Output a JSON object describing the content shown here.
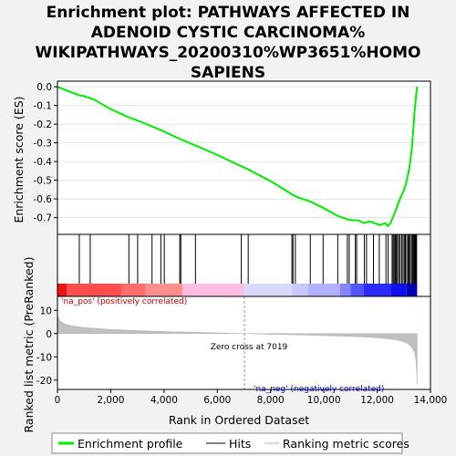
{
  "chart_data": {
    "type": "line",
    "title_lines": [
      "Enrichment plot: PATHWAYS AFFECTED IN",
      "ADENOID CYSTIC CARCINOMA%",
      "WIKIPATHWAYS_20200310%WP3651%HOMO",
      "SAPIENS"
    ],
    "es_panel": {
      "ylabel": "Enrichment score (ES)",
      "ylim": [
        -0.79,
        0.03
      ],
      "yticks": [
        0.0,
        -0.1,
        -0.2,
        -0.3,
        -0.4,
        -0.5,
        -0.6,
        -0.7
      ],
      "ytick_labels": [
        "0.0",
        "-0.1",
        "-0.2",
        "-0.3",
        "-0.4",
        "-0.5",
        "-0.6",
        "-0.7"
      ],
      "series": [
        {
          "name": "Enrichment profile",
          "color": "#00ee00",
          "x": [
            0,
            800,
            1000,
            1200,
            1400,
            2000,
            2700,
            3000,
            3600,
            4000,
            4600,
            5200,
            6000,
            6900,
            7200,
            8000,
            8800,
            9000,
            9500,
            10000,
            10500,
            10900,
            11100,
            11300,
            11500,
            11700,
            11900,
            12100,
            12300,
            12400,
            12500,
            12600,
            12700,
            12800,
            12900,
            13000,
            13100,
            13200,
            13250,
            13300,
            13350,
            13400,
            13450,
            13500
          ],
          "y": [
            0.0,
            -0.045,
            -0.05,
            -0.06,
            -0.07,
            -0.12,
            -0.165,
            -0.18,
            -0.215,
            -0.24,
            -0.28,
            -0.315,
            -0.365,
            -0.425,
            -0.445,
            -0.505,
            -0.575,
            -0.59,
            -0.615,
            -0.65,
            -0.69,
            -0.71,
            -0.715,
            -0.715,
            -0.73,
            -0.72,
            -0.73,
            -0.74,
            -0.73,
            -0.745,
            -0.73,
            -0.695,
            -0.66,
            -0.62,
            -0.585,
            -0.555,
            -0.51,
            -0.44,
            -0.39,
            -0.33,
            -0.24,
            -0.14,
            -0.06,
            0.0
          ]
        }
      ]
    },
    "hits": [
      820,
      1230,
      2680,
      3010,
      3550,
      3880,
      4010,
      4590,
      4630,
      5180,
      6900,
      7160,
      8800,
      8840,
      8930,
      9490,
      9970,
      10520,
      10880,
      10950,
      11180,
      11230,
      11520,
      11600,
      11860,
      12080,
      12330,
      12410,
      12560,
      12600,
      12640,
      12680,
      12720,
      12760,
      12810,
      12860,
      12920,
      12970,
      13020,
      13060,
      13110,
      13160,
      13200,
      13240,
      13290,
      13330,
      13360,
      13390,
      13420,
      13450,
      13480
    ],
    "heatmap": {
      "pos_label": "'na_pos' (positively correlated)",
      "neg_label": "'na_neg' (negatively correlated)",
      "bands": [
        {
          "start": 0,
          "end": 350,
          "color": "#ee1111"
        },
        {
          "start": 350,
          "end": 2400,
          "color": "#ff4c4c"
        },
        {
          "start": 2400,
          "end": 3300,
          "color": "#ff6c6c"
        },
        {
          "start": 3300,
          "end": 4700,
          "color": "#ff8e8e"
        },
        {
          "start": 4700,
          "end": 7000,
          "color": "#ffbde2"
        },
        {
          "start": 7000,
          "end": 8800,
          "color": "#d9d9ff"
        },
        {
          "start": 8800,
          "end": 9400,
          "color": "#c8c8ff"
        },
        {
          "start": 9400,
          "end": 10600,
          "color": "#b0b0ff"
        },
        {
          "start": 10600,
          "end": 11000,
          "color": "#8484ff"
        },
        {
          "start": 11000,
          "end": 11500,
          "color": "#5555ff"
        },
        {
          "start": 11500,
          "end": 12500,
          "color": "#2b2bff"
        },
        {
          "start": 12500,
          "end": 13100,
          "color": "#0f0fee"
        },
        {
          "start": 13100,
          "end": 13500,
          "color": "#0000b0"
        }
      ]
    },
    "metric_panel": {
      "ylabel": "Ranked list metric (PreRanked)",
      "ylim": [
        -24,
        16
      ],
      "yticks": [
        10,
        0,
        -10,
        -20
      ],
      "ytick_labels": [
        "10",
        "0",
        "-10",
        "-20"
      ],
      "zero_cross_label": "Zero cross at 7019",
      "zero_cross": 7019,
      "x": [
        0,
        100,
        300,
        600,
        1000,
        1500,
        2000,
        3000,
        4000,
        5000,
        6000,
        7019,
        8000,
        9000,
        10000,
        10500,
        11000,
        11500,
        12000,
        12400,
        12700,
        12900,
        13100,
        13200,
        13300,
        13400,
        13450,
        13480,
        13500
      ],
      "values": [
        8.0,
        5.5,
        4.0,
        3.2,
        2.6,
        2.2,
        1.8,
        1.3,
        0.9,
        0.6,
        0.3,
        0.0,
        -0.3,
        -0.55,
        -0.85,
        -1.0,
        -1.2,
        -1.45,
        -1.8,
        -2.2,
        -2.7,
        -3.2,
        -4.0,
        -4.8,
        -6.0,
        -8.0,
        -11.0,
        -16.0,
        -22.0
      ]
    },
    "xaxis": {
      "label": "Rank in Ordered Dataset",
      "xlim": [
        0,
        14000
      ],
      "ticks": [
        0,
        2000,
        4000,
        6000,
        8000,
        10000,
        12000,
        14000
      ],
      "tick_labels": [
        "0",
        "2,000",
        "4,000",
        "6,000",
        "8,000",
        "10,000",
        "12,000",
        "14,000"
      ]
    },
    "legend": {
      "placement": "bottom",
      "entries": [
        "Enrichment profile",
        "Hits",
        "Ranking metric scores"
      ]
    }
  }
}
